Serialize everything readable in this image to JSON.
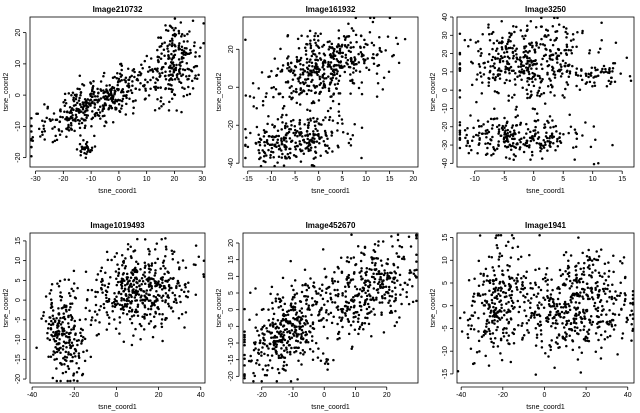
{
  "chart_data": [
    {
      "type": "scatter",
      "title": "Image210732",
      "xlabel": "tsne_coord1",
      "ylabel": "tsne_coord2",
      "xlim": [
        -32,
        31
      ],
      "ylim": [
        -23,
        25
      ],
      "xticks": [
        -30,
        -20,
        -10,
        0,
        10,
        20,
        30
      ],
      "yticks": [
        -20,
        -10,
        0,
        10,
        20
      ],
      "grid": false,
      "clusters": [
        {
          "x": -8,
          "y": -2,
          "sx": 11,
          "sy": 6,
          "rho": 0.8,
          "n": 420
        },
        {
          "x": 20,
          "y": 10,
          "sx": 4.5,
          "sy": 6.5,
          "rho": 0.1,
          "n": 220
        },
        {
          "x": -12,
          "y": -17,
          "sx": 1.6,
          "sy": 1.2,
          "rho": 0,
          "n": 30
        }
      ]
    },
    {
      "type": "scatter",
      "title": "Image161932",
      "xlabel": "tsne_coord1",
      "ylabel": "tsne_coord2",
      "xlim": [
        -16,
        21
      ],
      "ylim": [
        -42,
        37
      ],
      "xticks": [
        -15,
        -10,
        -5,
        0,
        5,
        10,
        15,
        20
      ],
      "yticks": [
        -40,
        -20,
        0,
        20
      ],
      "grid": false,
      "clusters": [
        {
          "x": 1,
          "y": 10,
          "sx": 6,
          "sy": 10,
          "rho": 0.35,
          "n": 450
        },
        {
          "x": -5,
          "y": -27,
          "sx": 5.5,
          "sy": 6,
          "rho": 0.3,
          "n": 280
        }
      ]
    },
    {
      "type": "scatter",
      "title": "Image3250",
      "xlabel": "tsne_coord1",
      "ylabel": "tsne_coord2",
      "xlim": [
        -13,
        17
      ],
      "ylim": [
        -42,
        40
      ],
      "xticks": [
        -10,
        -5,
        0,
        5,
        10,
        15
      ],
      "yticks": [
        -40,
        -30,
        -20,
        -10,
        0,
        10,
        20,
        30,
        40
      ],
      "grid": false,
      "clusters": [
        {
          "x": -1,
          "y": 15,
          "sx": 6,
          "sy": 11,
          "rho": 0.05,
          "n": 430
        },
        {
          "x": -2,
          "y": -27,
          "sx": 5.5,
          "sy": 5.5,
          "rho": 0,
          "n": 260
        },
        {
          "x": 11,
          "y": 9,
          "sx": 2.5,
          "sy": 3,
          "rho": 0,
          "n": 40
        }
      ]
    },
    {
      "type": "scatter",
      "title": "Image1019493",
      "xlabel": "tsne_coord1",
      "ylabel": "tsne_coord2",
      "xlim": [
        -41,
        42
      ],
      "ylim": [
        -21,
        17
      ],
      "xticks": [
        -40,
        -20,
        0,
        20,
        40
      ],
      "yticks": [
        -20,
        -15,
        -10,
        -5,
        0,
        5,
        10,
        15
      ],
      "grid": false,
      "clusters": [
        {
          "x": 12,
          "y": 3,
          "sx": 12,
          "sy": 5,
          "rho": 0.15,
          "n": 470
        },
        {
          "x": -25,
          "y": -8,
          "sx": 5,
          "sy": 6,
          "rho": -0.2,
          "n": 230
        }
      ]
    },
    {
      "type": "scatter",
      "title": "Image452670",
      "xlabel": "tsne_coord1",
      "ylabel": "tsne_coord2",
      "xlim": [
        -26,
        30
      ],
      "ylim": [
        -22,
        23
      ],
      "xticks": [
        -20,
        -10,
        0,
        10,
        20
      ],
      "yticks": [
        -20,
        -15,
        -10,
        -5,
        0,
        5,
        10,
        15,
        20
      ],
      "grid": false,
      "clusters": [
        {
          "x": -12,
          "y": -6,
          "sx": 7,
          "sy": 7,
          "rho": 0.55,
          "n": 380
        },
        {
          "x": 14,
          "y": 6,
          "sx": 8,
          "sy": 7,
          "rho": 0.4,
          "n": 380
        },
        {
          "x": 0,
          "y": -15,
          "sx": 1.5,
          "sy": 1,
          "rho": 0,
          "n": 10
        }
      ]
    },
    {
      "type": "scatter",
      "title": "Image1941",
      "xlabel": "tsne_coord1",
      "ylabel": "tsne_coord2",
      "xlim": [
        -42,
        43
      ],
      "ylim": [
        -17,
        16
      ],
      "xticks": [
        -40,
        -20,
        0,
        20,
        40
      ],
      "yticks": [
        -15,
        -10,
        -5,
        0,
        5,
        10,
        15
      ],
      "grid": false,
      "clusters": [
        {
          "x": -23,
          "y": 1,
          "sx": 7,
          "sy": 6,
          "rho": 0.3,
          "n": 260
        },
        {
          "x": 14,
          "y": -1,
          "sx": 16,
          "sy": 4.5,
          "rho": 0.15,
          "n": 430
        },
        {
          "x": 20,
          "y": 7,
          "sx": 5,
          "sy": 4,
          "rho": 0,
          "n": 70
        }
      ]
    }
  ]
}
